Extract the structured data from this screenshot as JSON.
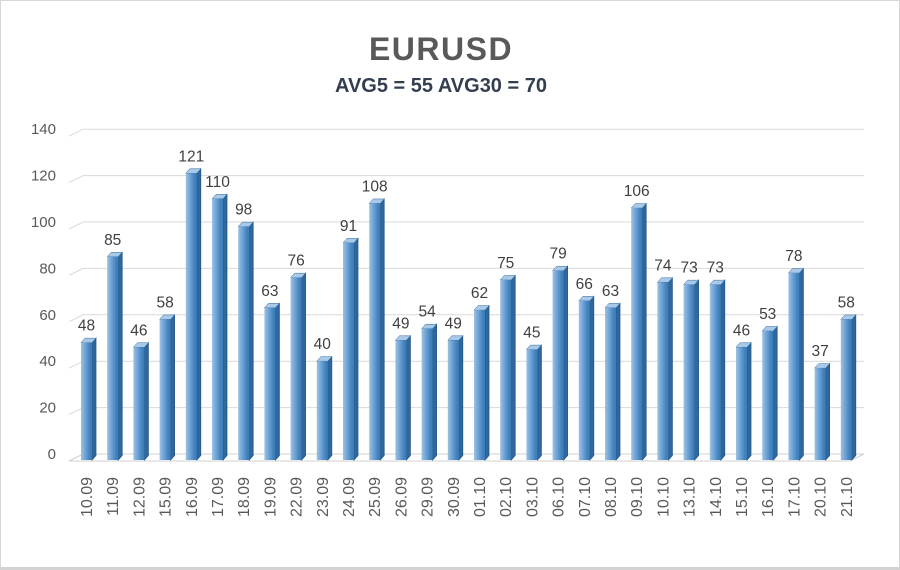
{
  "chart_data": {
    "type": "bar",
    "title": "EURUSD",
    "subtitle": "AVG5 = 55 AVG30 = 70",
    "avg5": 55,
    "avg30": 70,
    "categories": [
      "10.09",
      "11.09",
      "12.09",
      "15.09",
      "16.09",
      "17.09",
      "18.09",
      "19.09",
      "22.09",
      "23.09",
      "24.09",
      "25.09",
      "26.09",
      "29.09",
      "30.09",
      "01.10",
      "02.10",
      "03.10",
      "06.10",
      "07.10",
      "08.10",
      "09.10",
      "10.10",
      "13.10",
      "14.10",
      "15.10",
      "16.10",
      "17.10",
      "20.10",
      "21.10"
    ],
    "values": [
      48,
      85,
      46,
      58,
      121,
      110,
      98,
      63,
      76,
      40,
      91,
      108,
      49,
      54,
      49,
      62,
      75,
      45,
      79,
      66,
      63,
      106,
      74,
      73,
      73,
      46,
      53,
      78,
      37,
      58
    ],
    "xlabel": "",
    "ylabel": "",
    "ylim": [
      0,
      140
    ],
    "yticks": [
      0,
      20,
      40,
      60,
      80,
      100,
      120,
      140
    ],
    "grid": true,
    "legend": false,
    "style": "excel-3d-column",
    "colors": {
      "bar_face_light": "#9cc2e5",
      "bar_face_mid": "#6ba0d4",
      "bar_face_dark": "#4080ba",
      "bar_side": "#2f689f",
      "bar_edge": "#245684",
      "bar_top": "#a9c9e8",
      "grid": "#d9d9d9",
      "floor_fill": "#ffffff",
      "floor_edge": "#d0d0d0",
      "axis_text": "#595959",
      "value_text": "#404040",
      "title_text": "#595959",
      "subtitle_text": "#333f50",
      "background": "#ffffff"
    }
  }
}
